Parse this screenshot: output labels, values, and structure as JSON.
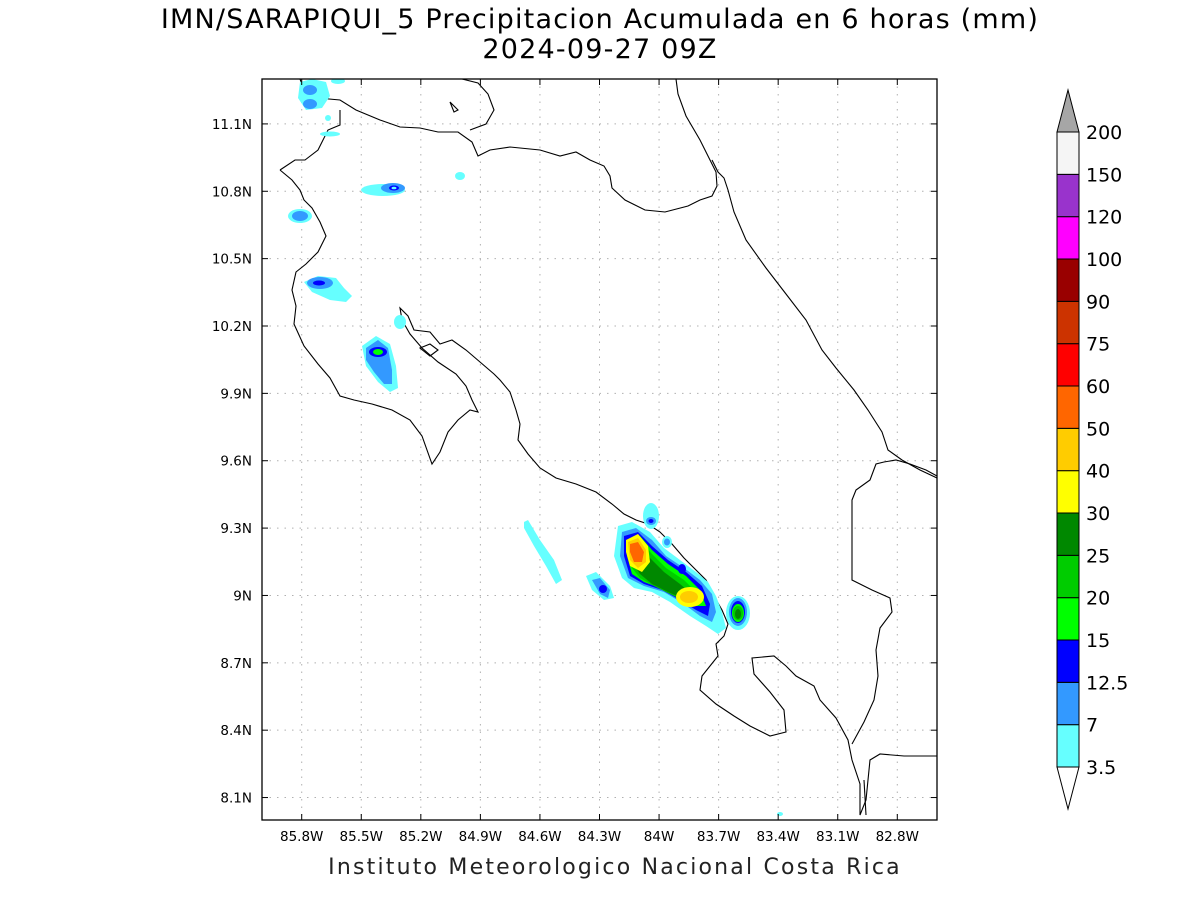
{
  "title": {
    "line1": "IMN/SARAPIQUI_5 Precipitacion Acumulada en 6 horas (mm)",
    "line2": "2024-09-27 09Z"
  },
  "footer": "Instituto Meteorologico Nacional Costa Rica",
  "map": {
    "lon_range": [
      -86.0,
      -82.6
    ],
    "lat_range": [
      8.0,
      11.3
    ],
    "lon_ticks": [
      {
        "value": -85.8,
        "label": "85.8W"
      },
      {
        "value": -85.5,
        "label": "85.5W"
      },
      {
        "value": -85.2,
        "label": "85.2W"
      },
      {
        "value": -84.9,
        "label": "84.9W"
      },
      {
        "value": -84.6,
        "label": "84.6W"
      },
      {
        "value": -84.3,
        "label": "84.3W"
      },
      {
        "value": -84.0,
        "label": "84W"
      },
      {
        "value": -83.7,
        "label": "83.7W"
      },
      {
        "value": -83.4,
        "label": "83.4W"
      },
      {
        "value": -83.1,
        "label": "83.1W"
      },
      {
        "value": -82.8,
        "label": "82.8W"
      }
    ],
    "lat_ticks": [
      {
        "value": 8.1,
        "label": "8.1N"
      },
      {
        "value": 8.4,
        "label": "8.4N"
      },
      {
        "value": 8.7,
        "label": "8.7N"
      },
      {
        "value": 9.0,
        "label": "9N"
      },
      {
        "value": 9.3,
        "label": "9.3N"
      },
      {
        "value": 9.6,
        "label": "9.6N"
      },
      {
        "value": 9.9,
        "label": "9.9N"
      },
      {
        "value": 10.2,
        "label": "10.2N"
      },
      {
        "value": 10.5,
        "label": "10.5N"
      },
      {
        "value": 10.8,
        "label": "10.8N"
      },
      {
        "value": 11.1,
        "label": "11.1N"
      }
    ],
    "grid": true
  },
  "colorbar": {
    "colors": [
      "#66ffff",
      "#3399ff",
      "#0000ff",
      "#00ff00",
      "#00cc00",
      "#008800",
      "#ffff00",
      "#ffcc00",
      "#ff6600",
      "#ff0000",
      "#cc3300",
      "#990000",
      "#ff00ff",
      "#9933cc",
      "#f5f5f5"
    ],
    "top_color": "#a6a6a6",
    "labels": [
      "3.5",
      "7",
      "12.5",
      "15",
      "20",
      "25",
      "30",
      "40",
      "50",
      "60",
      "75",
      "90",
      "100",
      "120",
      "150",
      "200"
    ]
  },
  "chart_data": {
    "type": "heatmap",
    "title": "IMN/SARAPIQUI_5 Precipitacion Acumulada en 6 horas (mm)",
    "subtitle": "2024-09-27 09Z",
    "x_range": [
      -86.0,
      -82.6
    ],
    "y_range": [
      8.0,
      11.3
    ],
    "contour_levels": [
      3.5,
      7,
      12.5,
      15,
      20,
      25,
      30,
      40,
      50,
      60,
      75,
      90,
      100,
      120,
      150,
      200
    ],
    "precip_cells": [
      {
        "lon": -84.05,
        "lat": 9.21,
        "peak_mm": 50
      },
      {
        "lon": -83.78,
        "lat": 9.0,
        "peak_mm": 40
      },
      {
        "lon": -83.95,
        "lat": 9.08,
        "peak_mm": 25
      },
      {
        "lon": -83.56,
        "lat": 8.92,
        "peak_mm": 25
      },
      {
        "lon": -84.0,
        "lat": 9.32,
        "peak_mm": 12.5
      },
      {
        "lon": -83.87,
        "lat": 9.23,
        "peak_mm": 12.5
      },
      {
        "lon": -83.84,
        "lat": 9.11,
        "peak_mm": 12.5
      },
      {
        "lon": -84.25,
        "lat": 9.03,
        "peak_mm": 12.5
      },
      {
        "lon": -85.41,
        "lat": 10.07,
        "peak_mm": 20
      },
      {
        "lon": -85.65,
        "lat": 10.39,
        "peak_mm": 15
      },
      {
        "lon": -85.33,
        "lat": 10.81,
        "peak_mm": 15
      },
      {
        "lon": -85.79,
        "lat": 10.69,
        "peak_mm": 7
      },
      {
        "lon": -85.83,
        "lat": 11.2,
        "peak_mm": 7
      },
      {
        "lon": -84.45,
        "lat": 9.18,
        "peak_mm": 3.5
      },
      {
        "lon": -85.24,
        "lat": 10.22,
        "peak_mm": 3.5
      },
      {
        "lon": -84.87,
        "lat": 10.87,
        "peak_mm": 3.5
      }
    ]
  }
}
